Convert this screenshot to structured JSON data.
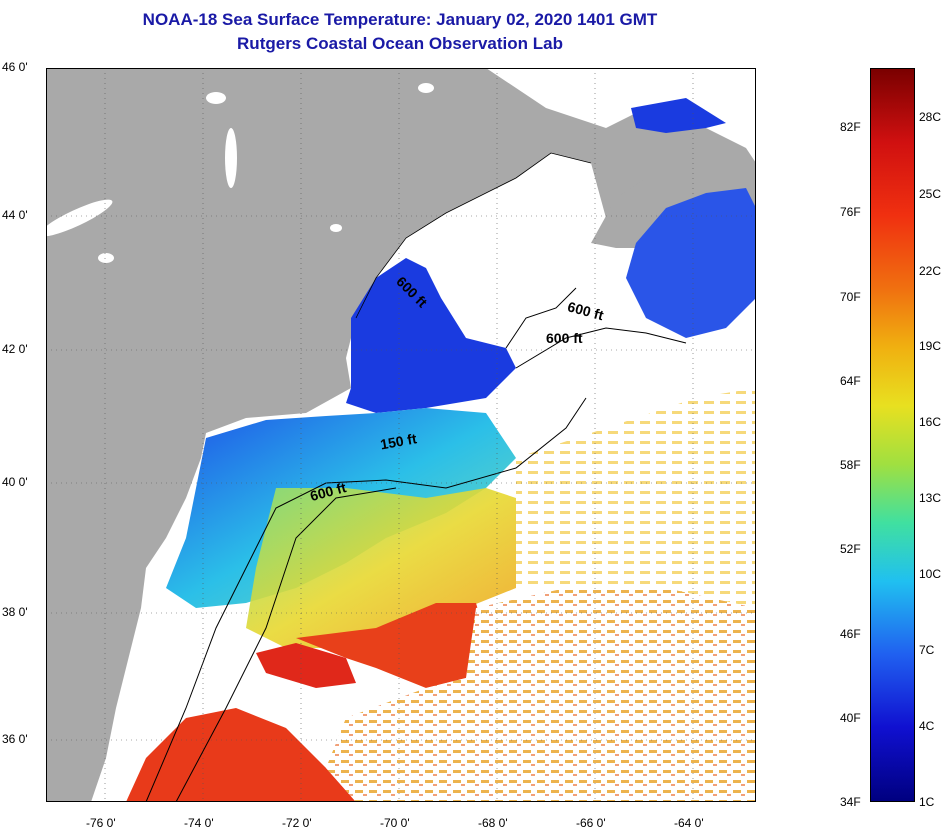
{
  "title": {
    "line1": "NOAA-18 Sea Surface Temperature:  January 02, 2020 1401 GMT",
    "line2": "Rutgers Coastal Ocean Observation Lab"
  },
  "lat_labels": [
    "46 0'",
    "44 0'",
    "42 0'",
    "40 0'",
    "38 0'",
    "36 0'"
  ],
  "lon_labels": [
    "-76 0'",
    "-74 0'",
    "-72 0'",
    "-70 0'",
    "-68 0'",
    "-66 0'",
    "-64 0'"
  ],
  "isobath_labels": [
    "600 ft",
    "600 ft",
    "600 ft",
    "150 ft",
    "600 ft"
  ],
  "colorbar": {
    "fahrenheit": [
      "82F",
      "76F",
      "70F",
      "64F",
      "58F",
      "52F",
      "46F",
      "40F",
      "34F"
    ],
    "celsius": [
      "28C",
      "25C",
      "22C",
      "19C",
      "16C",
      "13C",
      "10C",
      "7C",
      "4C",
      "1C"
    ]
  },
  "colors": {
    "land": "#a9a9a9",
    "title": "#1a1aa6",
    "warm": "#e8241a",
    "cold": "#1a2de6"
  }
}
